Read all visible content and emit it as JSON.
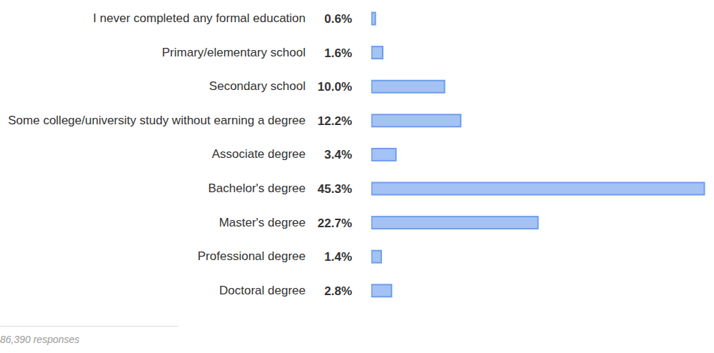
{
  "chart_data": {
    "type": "bar",
    "orientation": "horizontal",
    "categories": [
      "I never completed any formal education",
      "Primary/elementary school",
      "Secondary school",
      "Some college/university study without earning a degree",
      "Associate degree",
      "Bachelor's degree",
      "Master's degree",
      "Professional degree",
      "Doctoral degree"
    ],
    "values": [
      0.6,
      1.6,
      10.0,
      12.2,
      3.4,
      45.3,
      22.7,
      1.4,
      2.8
    ],
    "value_labels": [
      "0.6%",
      "1.6%",
      "10.0%",
      "12.2%",
      "3.4%",
      "45.3%",
      "22.7%",
      "1.4%",
      "2.8%"
    ],
    "color": "#a4c2f4",
    "xlim": [
      0,
      45.3
    ],
    "data_labels": true,
    "tick_labels": false,
    "grid": false,
    "annotations": [
      "86,390 responses"
    ]
  }
}
